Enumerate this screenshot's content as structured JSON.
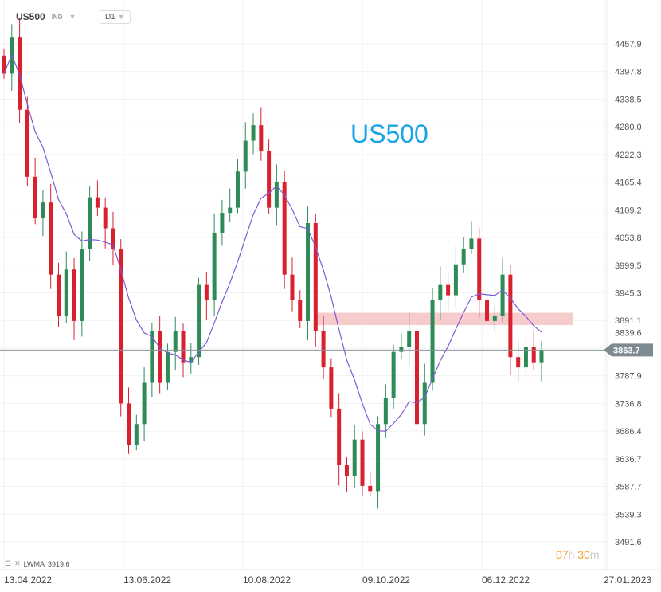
{
  "header": {
    "symbol": "US500",
    "type": "IND",
    "timeframe": "D1"
  },
  "watermark": "US500",
  "timer": {
    "hours": "07",
    "h": "h",
    "minutes": "30",
    "m": "m"
  },
  "legend": {
    "name": "LWMA",
    "value": "3919.6"
  },
  "current_price": "3863.7",
  "colors": {
    "up": "#2e8b57",
    "down": "#d9202f",
    "lwma": "#7b5cd6",
    "zone": "#f6c3c3",
    "accent": "#1aa3e8"
  },
  "chart_data": {
    "type": "candlestick",
    "title": "US500",
    "ylim": [
      3491.6,
      4457.9
    ],
    "y_ticks": [
      "4457.9",
      "4397.8",
      "4338.5",
      "4280.0",
      "4222.3",
      "4165.4",
      "4109.2",
      "4053.8",
      "3999.5",
      "3945.3",
      "3891.1",
      "3839.6",
      "3787.9",
      "3736.8",
      "3686.4",
      "3636.7",
      "3587.7",
      "3539.3",
      "3491.6"
    ],
    "x_ticks": [
      "13.04.2022",
      "13.06.2022",
      "10.08.2022",
      "09.10.2022",
      "06.12.2022",
      "27.01.2023"
    ],
    "first_open": 4435,
    "closes": [
      4400,
      4470,
      4330,
      4200,
      4120,
      4150,
      4010,
      3930,
      4020,
      3920,
      4060,
      4160,
      4140,
      4100,
      4060,
      3760,
      3680,
      3720,
      3800,
      3900,
      3800,
      3860,
      3900,
      3840,
      3850,
      3990,
      3960,
      4090,
      4130,
      4140,
      4210,
      4270,
      4300,
      4250,
      4140,
      4190,
      4010,
      3960,
      3920,
      4110,
      3900,
      3830,
      3750,
      3640,
      3620,
      3690,
      3600,
      3590,
      3720,
      3770,
      3860,
      3870,
      3900,
      3720,
      3800,
      3960,
      3990,
      3970,
      4030,
      4060,
      4080,
      3960,
      3920,
      3930,
      4010,
      3850,
      3830,
      3870,
      3840,
      3864
    ],
    "indicator": {
      "name": "LWMA",
      "period": 12
    },
    "zone": [
      3912,
      3936
    ],
    "last": 3863.7
  }
}
